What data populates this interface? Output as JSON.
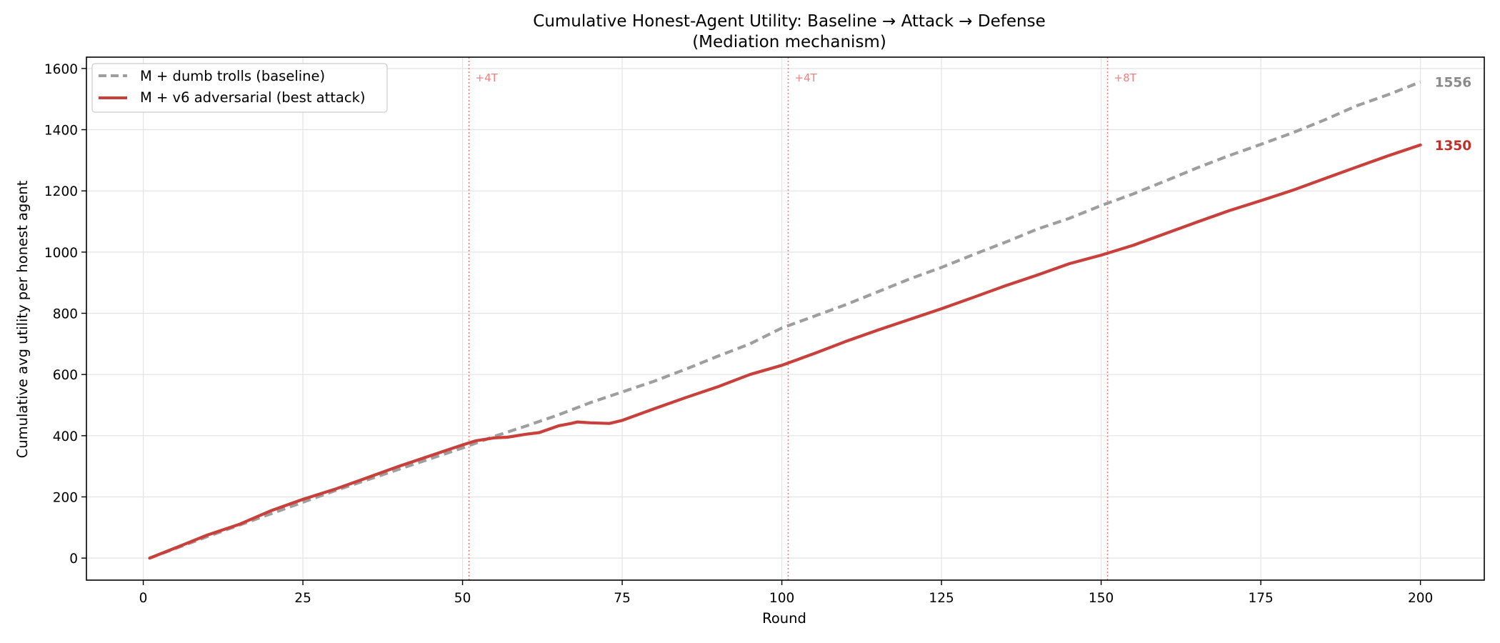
{
  "chart_data": {
    "type": "line",
    "title": "Cumulative Honest-Agent Utility: Baseline → Attack → Defense",
    "subtitle": "(Mediation mechanism)",
    "xlabel": "Round",
    "ylabel": "Cumulative avg utility per honest agent",
    "xlim": [
      -8.9,
      210
    ],
    "ylim": [
      -72,
      1637
    ],
    "xticks": [
      0,
      25,
      50,
      75,
      100,
      125,
      150,
      175,
      200
    ],
    "yticks": [
      0,
      200,
      400,
      600,
      800,
      1000,
      1200,
      1400,
      1600
    ],
    "grid": true,
    "legend_position": "top-left",
    "series": [
      {
        "name": "M + dumb trolls (baseline)",
        "color": "#9e9e9e",
        "style": "dashed",
        "x": [
          1,
          10,
          20,
          30,
          40,
          50,
          55,
          60,
          65,
          70,
          75,
          80,
          85,
          90,
          95,
          100,
          105,
          110,
          115,
          120,
          125,
          130,
          135,
          140,
          145,
          150,
          155,
          160,
          165,
          170,
          175,
          180,
          185,
          190,
          195,
          200
        ],
        "y": [
          0,
          70,
          145,
          220,
          290,
          360,
          398,
          432,
          468,
          508,
          543,
          578,
          618,
          660,
          700,
          752,
          790,
          828,
          870,
          912,
          950,
          992,
          1032,
          1075,
          1110,
          1152,
          1190,
          1232,
          1275,
          1315,
          1352,
          1390,
          1432,
          1478,
          1515,
          1556
        ],
        "end_label": "1556"
      },
      {
        "name": "M + v6 adversarial (best attack)",
        "color": "#c9403a",
        "style": "solid",
        "x": [
          1,
          5,
          10,
          15,
          20,
          25,
          30,
          35,
          40,
          45,
          50,
          52,
          55,
          57,
          60,
          62,
          65,
          67,
          68,
          70,
          73,
          75,
          80,
          85,
          90,
          95,
          100,
          105,
          110,
          115,
          120,
          125,
          130,
          135,
          140,
          145,
          150,
          155,
          160,
          165,
          170,
          175,
          180,
          185,
          190,
          195,
          200
        ],
        "y": [
          0,
          33,
          75,
          110,
          155,
          192,
          225,
          262,
          300,
          335,
          370,
          383,
          393,
          395,
          405,
          410,
          432,
          440,
          445,
          442,
          440,
          450,
          488,
          525,
          560,
          600,
          630,
          668,
          708,
          745,
          780,
          815,
          852,
          890,
          925,
          962,
          990,
          1022,
          1060,
          1098,
          1135,
          1168,
          1202,
          1240,
          1278,
          1315,
          1350
        ],
        "end_label": "1350"
      }
    ],
    "vertical_markers": [
      {
        "x": 51,
        "label": "+4T"
      },
      {
        "x": 101,
        "label": "+4T"
      },
      {
        "x": 151,
        "label": "+8T"
      }
    ],
    "marker_color": "#f08080"
  }
}
